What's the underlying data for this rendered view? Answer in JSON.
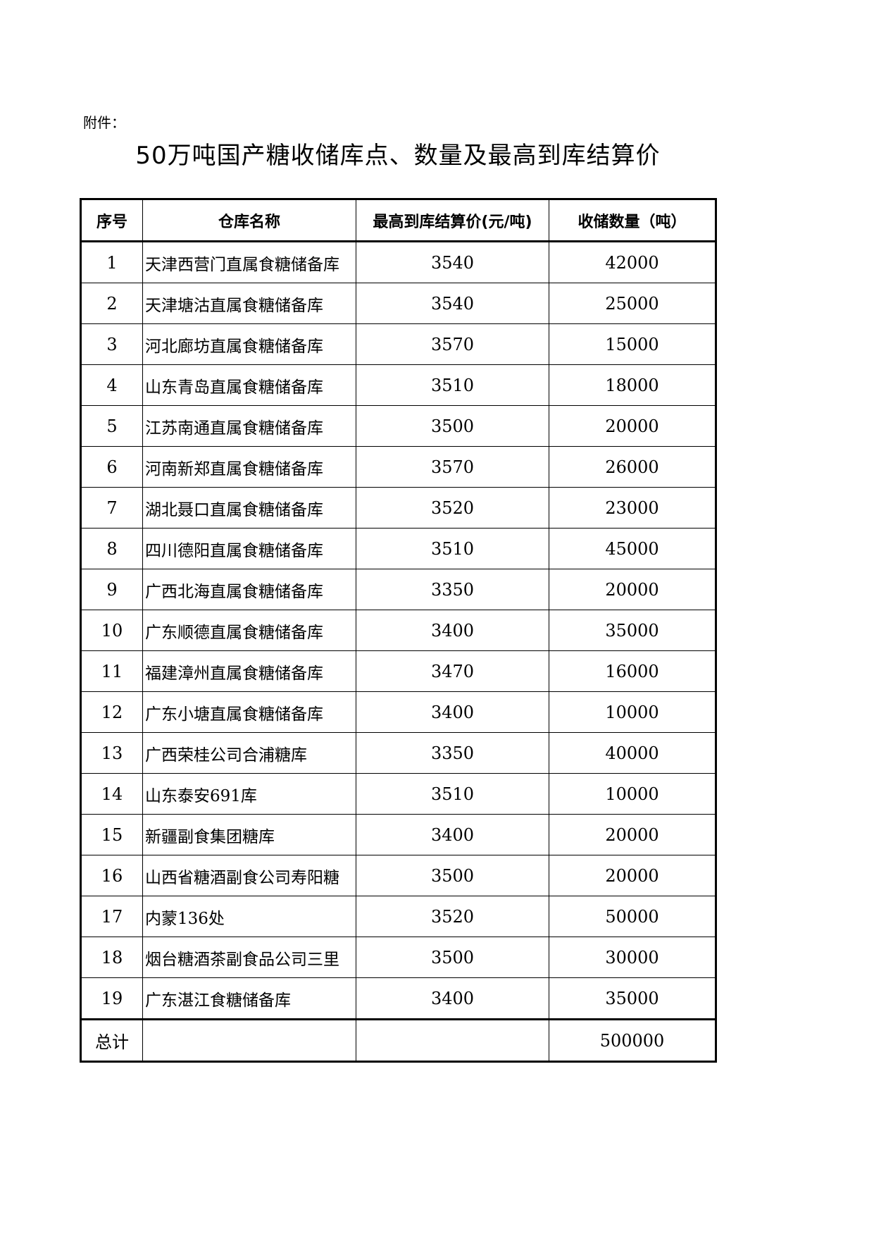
{
  "attachment_label": "附件：",
  "title": "50万吨国产糖收储库点、数量及最高到库结算价",
  "table": {
    "headers": [
      "序号",
      "仓库名称",
      "最高到库结算价(元/吨)",
      "收储数量（吨）"
    ],
    "rows": [
      [
        "1",
        "天津西营门直属食糖储备库",
        "3540",
        "42000"
      ],
      [
        "2",
        "天津塘沽直属食糖储备库",
        "3540",
        "25000"
      ],
      [
        "3",
        "河北廊坊直属食糖储备库",
        "3570",
        "15000"
      ],
      [
        "4",
        "山东青岛直属食糖储备库",
        "3510",
        "18000"
      ],
      [
        "5",
        "江苏南通直属食糖储备库",
        "3500",
        "20000"
      ],
      [
        "6",
        "河南新郑直属食糖储备库",
        "3570",
        "26000"
      ],
      [
        "7",
        "湖北聂口直属食糖储备库",
        "3520",
        "23000"
      ],
      [
        "8",
        "四川德阳直属食糖储备库",
        "3510",
        "45000"
      ],
      [
        "9",
        "广西北海直属食糖储备库",
        "3350",
        "20000"
      ],
      [
        "10",
        "广东顺德直属食糖储备库",
        "3400",
        "35000"
      ],
      [
        "11",
        "福建漳州直属食糖储备库",
        "3470",
        "16000"
      ],
      [
        "12",
        "广东小塘直属食糖储备库",
        "3400",
        "10000"
      ],
      [
        "13",
        "广西荣桂公司合浦糖库",
        "3350",
        "40000"
      ],
      [
        "14",
        "山东泰安691库",
        "3510",
        "10000"
      ],
      [
        "15",
        "新疆副食集团糖库",
        "3400",
        "20000"
      ],
      [
        "16",
        "山西省糖酒副食公司寿阳糖",
        "3500",
        "20000"
      ],
      [
        "17",
        "内蒙136处",
        "3520",
        "50000"
      ],
      [
        "18",
        "烟台糖酒茶副食品公司三里",
        "3500",
        "30000"
      ],
      [
        "19",
        "广东湛江食糖储备库",
        "3400",
        "35000"
      ]
    ],
    "total": {
      "label": "总计",
      "price": "",
      "quantity": "500000"
    }
  }
}
